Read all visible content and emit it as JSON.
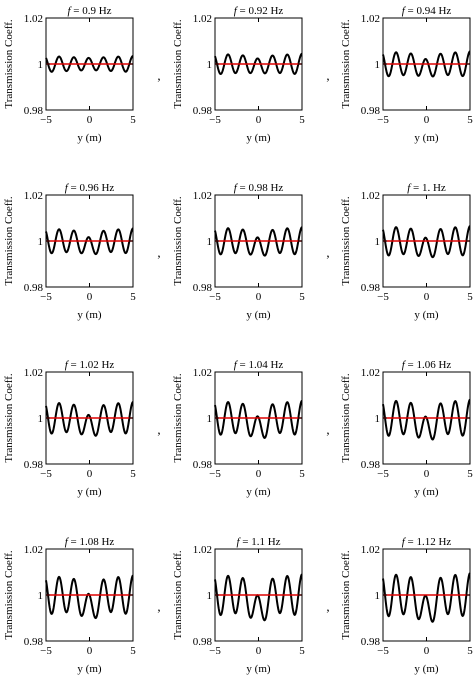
{
  "figure": {
    "ylabel": "Transmission Coeff.",
    "xlabel": "y (m)",
    "title_var": "f",
    "title_eq": " = ",
    "title_unit": " Hz",
    "separator": ",",
    "colors": {
      "response": "#000000",
      "baseline": "#dd0000",
      "axes": "#000000"
    }
  },
  "chart_data": [
    {
      "type": "line",
      "freq_label": "0.9",
      "title": "f = 0.9 Hz",
      "xlabel": "y (m)",
      "ylabel": "Transmission Coeff.",
      "xlim": [
        -5,
        5
      ],
      "ylim": [
        0.98,
        1.02
      ],
      "xticks": [
        "-5",
        "0",
        "5"
      ],
      "yticks": [
        "0.98",
        "1",
        "1.02"
      ],
      "grid": false,
      "center_dip": 0.0,
      "amp": 0.0035,
      "series": [
        {
          "x": [
            -4.6,
            -3.8,
            -3.0,
            -2.1,
            -1.3,
            -0.5,
            0.5,
            1.3,
            2.1,
            3.0,
            3.8,
            4.6
          ],
          "y": [
            0.997,
            1.0035,
            0.9965,
            1.0035,
            0.9965,
            1.003,
            0.997,
            1.0035,
            0.9965,
            1.0035,
            0.9965,
            1.003
          ]
        },
        {
          "x": [
            -5,
            5
          ],
          "y": [
            1,
            1
          ]
        }
      ]
    },
    {
      "type": "line",
      "freq_label": "0.92",
      "title": "f = 0.92 Hz",
      "xlabel": "y (m)",
      "ylabel": "Transmission Coeff.",
      "xlim": [
        -5,
        5
      ],
      "ylim": [
        0.98,
        1.02
      ],
      "xticks": [
        "-5",
        "0",
        "5"
      ],
      "yticks": [
        "0.98",
        "1",
        "1.02"
      ],
      "grid": false,
      "center_dip": 0.001,
      "amp": 0.0045,
      "series": [
        {
          "x": [
            -4.6,
            -3.8,
            -3.0,
            -2.1,
            -1.3,
            -0.5,
            0.5,
            1.3,
            2.1,
            3.0,
            3.8,
            4.6
          ],
          "y": [
            0.997,
            1.004,
            0.996,
            1.0045,
            0.996,
            1.003,
            0.996,
            1.0045,
            0.996,
            1.0045,
            0.996,
            1.004
          ]
        },
        {
          "x": [
            -5,
            5
          ],
          "y": [
            1,
            1
          ]
        }
      ]
    },
    {
      "type": "line",
      "freq_label": "0.94",
      "title": "f = 0.94 Hz",
      "xlabel": "y (m)",
      "ylabel": "Transmission Coeff.",
      "xlim": [
        -5,
        5
      ],
      "ylim": [
        0.98,
        1.02
      ],
      "xticks": [
        "-5",
        "0",
        "5"
      ],
      "yticks": [
        "0.98",
        "1",
        "1.02"
      ],
      "grid": false,
      "center_dip": 0.002,
      "amp": 0.0055,
      "series": [
        {
          "x": [
            -4.6,
            -3.8,
            -3.0,
            -2.1,
            -1.3,
            -0.5,
            0.5,
            1.3,
            2.1,
            3.0,
            3.8,
            4.6
          ],
          "y": [
            0.997,
            1.005,
            0.995,
            1.0055,
            0.995,
            1.003,
            0.995,
            1.0055,
            0.995,
            1.0055,
            0.995,
            1.005
          ]
        },
        {
          "x": [
            -5,
            5
          ],
          "y": [
            1,
            1
          ]
        }
      ]
    },
    {
      "type": "line",
      "freq_label": "0.96",
      "title": "f = 0.96 Hz",
      "xlabel": "y (m)",
      "ylabel": "Transmission Coeff.",
      "xlim": [
        -5,
        5
      ],
      "ylim": [
        0.98,
        1.02
      ],
      "xticks": [
        "-5",
        "0",
        "5"
      ],
      "yticks": [
        "0.98",
        "1",
        "1.02"
      ],
      "grid": false,
      "center_dip": 0.0025,
      "amp": 0.0055,
      "series": [
        {
          "x": [
            -4.6,
            -3.8,
            -3.0,
            -2.1,
            -1.3,
            -0.5,
            0.5,
            1.3,
            2.1,
            3.0,
            3.8,
            4.6
          ],
          "y": [
            0.996,
            1.005,
            0.995,
            1.0055,
            0.995,
            1.003,
            0.9945,
            1.0055,
            0.995,
            1.0055,
            0.995,
            1.005
          ]
        },
        {
          "x": [
            -5,
            5
          ],
          "y": [
            1,
            1
          ]
        }
      ]
    },
    {
      "type": "line",
      "freq_label": "0.98",
      "title": "f = 0.98 Hz",
      "xlabel": "y (m)",
      "ylabel": "Transmission Coeff.",
      "xlim": [
        -5,
        5
      ],
      "ylim": [
        0.98,
        1.02
      ],
      "xticks": [
        "-5",
        "0",
        "5"
      ],
      "yticks": [
        "0.98",
        "1",
        "1.02"
      ],
      "grid": false,
      "center_dip": 0.003,
      "amp": 0.006,
      "series": [
        {
          "x": [
            -4.6,
            -3.8,
            -3.0,
            -2.1,
            -1.3,
            -0.5,
            0.5,
            1.3,
            2.1,
            3.0,
            3.8,
            4.6
          ],
          "y": [
            0.996,
            1.006,
            0.994,
            1.006,
            0.994,
            1.003,
            0.994,
            1.006,
            0.994,
            1.006,
            0.994,
            1.006
          ]
        },
        {
          "x": [
            -5,
            5
          ],
          "y": [
            1,
            1
          ]
        }
      ]
    },
    {
      "type": "line",
      "freq_label": "1.",
      "title": "f = 1. Hz",
      "xlabel": "y (m)",
      "ylabel": "Transmission Coeff.",
      "xlim": [
        -5,
        5
      ],
      "ylim": [
        0.98,
        1.02
      ],
      "xticks": [
        "-5",
        "0",
        "5"
      ],
      "yticks": [
        "0.98",
        "1",
        "1.02"
      ],
      "grid": false,
      "center_dip": 0.0035,
      "amp": 0.0065,
      "series": [
        {
          "x": [
            -4.6,
            -3.8,
            -3.0,
            -2.1,
            -1.3,
            -0.5,
            0.5,
            1.3,
            2.1,
            3.0,
            3.8,
            4.6
          ],
          "y": [
            0.996,
            1.0065,
            0.9935,
            1.0065,
            0.9935,
            1.003,
            0.993,
            1.0065,
            0.9935,
            1.0065,
            0.9935,
            1.0065
          ]
        },
        {
          "x": [
            -5,
            5
          ],
          "y": [
            1,
            1
          ]
        }
      ]
    },
    {
      "type": "line",
      "freq_label": "1.02",
      "title": "f = 1.02 Hz",
      "xlabel": "y (m)",
      "ylabel": "Transmission Coeff.",
      "xlim": [
        -5,
        5
      ],
      "ylim": [
        0.98,
        1.02
      ],
      "xticks": [
        "-5",
        "0",
        "5"
      ],
      "yticks": [
        "0.98",
        "1",
        "1.02"
      ],
      "grid": false,
      "center_dip": 0.004,
      "amp": 0.007,
      "series": [
        {
          "x": [
            -4.6,
            -3.8,
            -3.0,
            -2.1,
            -1.3,
            -0.5,
            0.5,
            1.3,
            2.1,
            3.0,
            3.8,
            4.6
          ],
          "y": [
            0.995,
            1.007,
            0.993,
            1.007,
            0.993,
            1.003,
            0.992,
            1.007,
            0.993,
            1.007,
            0.993,
            1.007
          ]
        },
        {
          "x": [
            -5,
            5
          ],
          "y": [
            1,
            1
          ]
        }
      ]
    },
    {
      "type": "line",
      "freq_label": "1.04",
      "title": "f = 1.04 Hz",
      "xlabel": "y (m)",
      "ylabel": "Transmission Coeff.",
      "xlim": [
        -5,
        5
      ],
      "ylim": [
        0.98,
        1.02
      ],
      "xticks": [
        "-5",
        "0",
        "5"
      ],
      "yticks": [
        "0.98",
        "1",
        "1.02"
      ],
      "grid": false,
      "center_dip": 0.005,
      "amp": 0.0075,
      "series": [
        {
          "x": [
            -4.6,
            -3.8,
            -3.0,
            -2.1,
            -1.3,
            -0.5,
            0.5,
            1.3,
            2.1,
            3.0,
            3.8,
            4.6
          ],
          "y": [
            0.995,
            1.0075,
            0.9925,
            1.0075,
            0.9925,
            1.003,
            0.991,
            1.0075,
            0.9925,
            1.0075,
            0.9925,
            1.0075
          ]
        },
        {
          "x": [
            -5,
            5
          ],
          "y": [
            1,
            1
          ]
        }
      ]
    },
    {
      "type": "line",
      "freq_label": "1.06",
      "title": "f = 1.06 Hz",
      "xlabel": "y (m)",
      "ylabel": "Transmission Coeff.",
      "xlim": [
        -5,
        5
      ],
      "ylim": [
        0.98,
        1.02
      ],
      "xticks": [
        "-5",
        "0",
        "5"
      ],
      "yticks": [
        "0.98",
        "1",
        "1.02"
      ],
      "grid": false,
      "center_dip": 0.0055,
      "amp": 0.008,
      "series": [
        {
          "x": [
            -4.6,
            -3.8,
            -3.0,
            -2.1,
            -1.3,
            -0.5,
            0.5,
            1.3,
            2.1,
            3.0,
            3.8,
            4.6
          ],
          "y": [
            0.995,
            1.008,
            0.992,
            1.008,
            0.992,
            1.003,
            0.9905,
            1.008,
            0.992,
            1.008,
            0.992,
            1.008
          ]
        },
        {
          "x": [
            -5,
            5
          ],
          "y": [
            1,
            1
          ]
        }
      ]
    },
    {
      "type": "line",
      "freq_label": "1.08",
      "title": "f = 1.08 Hz",
      "xlabel": "y (m)",
      "ylabel": "Transmission Coeff.",
      "xlim": [
        -5,
        5
      ],
      "ylim": [
        0.98,
        1.02
      ],
      "xticks": [
        "-5",
        "0",
        "5"
      ],
      "yticks": [
        "0.98",
        "1",
        "1.02"
      ],
      "grid": false,
      "center_dip": 0.006,
      "amp": 0.0085,
      "series": [
        {
          "x": [
            -4.6,
            -3.8,
            -3.0,
            -2.1,
            -1.3,
            -0.5,
            0.5,
            1.3,
            2.1,
            3.0,
            3.8,
            4.6
          ],
          "y": [
            0.995,
            1.0085,
            0.9915,
            1.0085,
            0.9915,
            1.003,
            0.99,
            1.0085,
            0.9915,
            1.0085,
            0.9915,
            1.0085
          ]
        },
        {
          "x": [
            -5,
            5
          ],
          "y": [
            1,
            1
          ]
        }
      ]
    },
    {
      "type": "line",
      "freq_label": "1.1",
      "title": "f = 1.1 Hz",
      "xlabel": "y (m)",
      "ylabel": "Transmission Coeff.",
      "xlim": [
        -5,
        5
      ],
      "ylim": [
        0.98,
        1.02
      ],
      "xticks": [
        "-5",
        "0",
        "5"
      ],
      "yticks": [
        "0.98",
        "1",
        "1.02"
      ],
      "grid": false,
      "center_dip": 0.007,
      "amp": 0.009,
      "series": [
        {
          "x": [
            -4.6,
            -3.8,
            -3.0,
            -2.1,
            -1.3,
            -0.5,
            0.5,
            1.3,
            2.1,
            3.0,
            3.8,
            4.6
          ],
          "y": [
            0.995,
            1.009,
            0.991,
            1.009,
            0.991,
            1.003,
            0.989,
            1.009,
            0.991,
            1.009,
            0.991,
            1.009
          ]
        },
        {
          "x": [
            -5,
            5
          ],
          "y": [
            1,
            1
          ]
        }
      ]
    },
    {
      "type": "line",
      "freq_label": "1.12",
      "title": "f = 1.12 Hz",
      "xlabel": "y (m)",
      "ylabel": "Transmission Coeff.",
      "xlim": [
        -5,
        5
      ],
      "ylim": [
        0.98,
        1.02
      ],
      "xticks": [
        "-5",
        "0",
        "5"
      ],
      "yticks": [
        "0.98",
        "1",
        "1.02"
      ],
      "grid": false,
      "center_dip": 0.0075,
      "amp": 0.0095,
      "series": [
        {
          "x": [
            -4.6,
            -3.8,
            -3.0,
            -2.1,
            -1.3,
            -0.5,
            0.5,
            1.3,
            2.1,
            3.0,
            3.8,
            4.6
          ],
          "y": [
            0.995,
            1.0095,
            0.9905,
            1.0095,
            0.9905,
            1.003,
            0.988,
            1.0095,
            0.9905,
            1.0095,
            0.9905,
            1.0095
          ]
        },
        {
          "x": [
            -5,
            5
          ],
          "y": [
            1,
            1
          ]
        }
      ]
    }
  ]
}
